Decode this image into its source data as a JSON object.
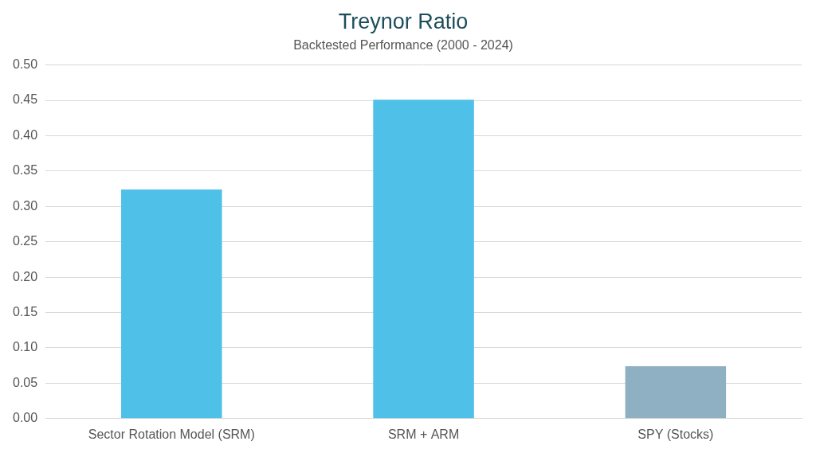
{
  "chart_data": {
    "type": "bar",
    "title": "Treynor Ratio",
    "subtitle": "Backtested Performance (2000 - 2024)",
    "categories": [
      "Sector Rotation Model (SRM)",
      "SRM + ARM",
      "SPY (Stocks)"
    ],
    "values": [
      0.324,
      0.451,
      0.074
    ],
    "colors": [
      "#4fc0e8",
      "#4fc0e8",
      "#8fafc3"
    ],
    "ylim": [
      0,
      0.5
    ],
    "yticks": [
      {
        "value": 0,
        "label": "0.00"
      },
      {
        "value": 0.05,
        "label": "0.05"
      },
      {
        "value": 0.1,
        "label": "0.10"
      },
      {
        "value": 0.15,
        "label": "0.15"
      },
      {
        "value": 0.2,
        "label": "0.20"
      },
      {
        "value": 0.25,
        "label": "0.25"
      },
      {
        "value": 0.3,
        "label": "0.30"
      },
      {
        "value": 0.35,
        "label": "0.35"
      },
      {
        "value": 0.4,
        "label": "0.40"
      },
      {
        "value": 0.45,
        "label": "0.45"
      },
      {
        "value": 0.5,
        "label": "0.50"
      }
    ],
    "grid": true
  }
}
